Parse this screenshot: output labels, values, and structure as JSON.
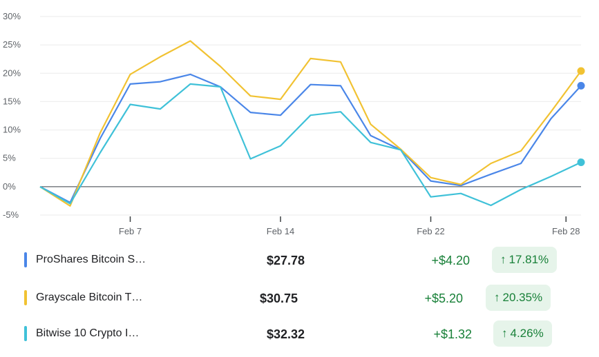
{
  "chart_data": {
    "type": "line",
    "y_unit": "%",
    "ylim": [
      -5,
      30
    ],
    "yticks": [
      "30%",
      "25%",
      "20%",
      "15%",
      "10%",
      "5%",
      "0%",
      "-5%"
    ],
    "ytick_values": [
      30,
      25,
      20,
      15,
      10,
      5,
      0,
      -5
    ],
    "x_index_range": [
      0,
      19
    ],
    "xticks": [
      {
        "label": "Feb 7",
        "index": 3
      },
      {
        "label": "Feb 14",
        "index": 8
      },
      {
        "label": "Feb 22",
        "index": 13
      },
      {
        "label": "Feb 28",
        "index": 17.5
      }
    ],
    "series": [
      {
        "name": "ProShares Bitcoin S…",
        "color": "#4a86e8",
        "values": [
          0,
          -2.8,
          8.5,
          18.1,
          18.5,
          19.8,
          17.6,
          13.1,
          12.6,
          18.0,
          17.8,
          9.0,
          6.5,
          1.0,
          0.2,
          2.2,
          4.1,
          12.0,
          17.8
        ]
      },
      {
        "name": "Grayscale Bitcoin T…",
        "color": "#f1c232",
        "values": [
          0,
          -3.4,
          9.5,
          19.8,
          22.9,
          25.7,
          21.2,
          16.0,
          15.4,
          22.6,
          22.0,
          11.0,
          6.6,
          1.6,
          0.4,
          4.1,
          6.3,
          13.2,
          20.4
        ]
      },
      {
        "name": "Bitwise 10 Crypto I…",
        "color": "#3fc1d8",
        "values": [
          0,
          -3.0,
          6.0,
          14.5,
          13.7,
          18.1,
          17.6,
          4.9,
          7.2,
          12.6,
          13.2,
          7.8,
          6.5,
          -1.8,
          -1.2,
          -3.3,
          -0.5,
          1.8,
          4.3
        ]
      }
    ]
  },
  "legend": [
    {
      "name": "ProShares Bitcoin S…",
      "price": "$27.78",
      "change": "+$4.20",
      "pct": "17.81%",
      "color": "#4a86e8"
    },
    {
      "name": "Grayscale Bitcoin T…",
      "price": "$30.75",
      "change": "+$5.20",
      "pct": "20.35%",
      "color": "#f1c232"
    },
    {
      "name": "Bitwise 10 Crypto I…",
      "price": "$32.32",
      "change": "+$1.32",
      "pct": "4.26%",
      "color": "#3fc1d8"
    }
  ],
  "arrow_glyph": "↑"
}
